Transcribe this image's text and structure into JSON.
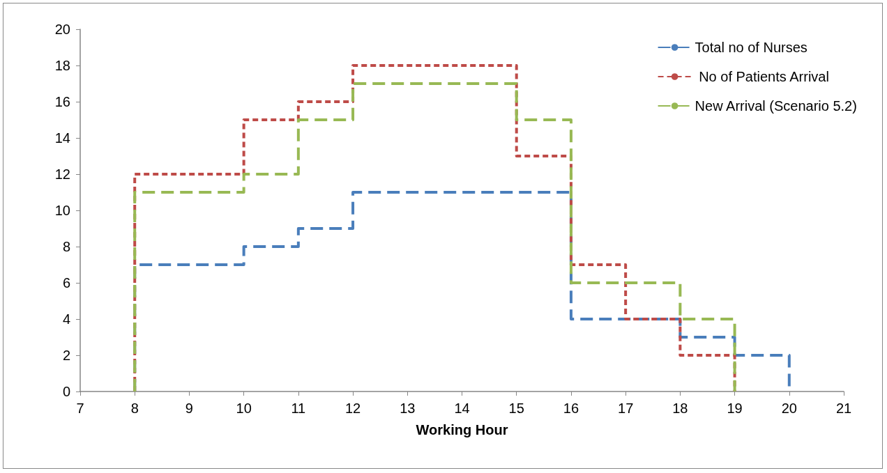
{
  "chart_data": {
    "type": "step",
    "xlabel": "Working Hour",
    "xlim": [
      7,
      21
    ],
    "xticks": [
      7,
      8,
      9,
      10,
      11,
      12,
      13,
      14,
      15,
      16,
      17,
      18,
      19,
      20,
      21
    ],
    "ylim": [
      0,
      20
    ],
    "yticks": [
      0,
      2,
      4,
      6,
      8,
      10,
      12,
      14,
      16,
      18,
      20
    ],
    "grid": false,
    "legend": "top right",
    "marker": "none",
    "series": [
      {
        "name": "Total no of Nurses",
        "color": "#4a7ebb",
        "line_style": "dashed",
        "x": [
          8,
          8,
          10,
          11,
          12,
          16,
          18,
          19,
          20
        ],
        "values": [
          0,
          7,
          8,
          9,
          11,
          4,
          3,
          2,
          0
        ]
      },
      {
        "name": " No of Patients Arrival",
        "color": "#be4b48",
        "line_style": "dotted",
        "x": [
          8,
          8,
          10,
          11,
          12,
          15,
          16,
          17,
          18,
          19
        ],
        "values": [
          0,
          12,
          15,
          16,
          18,
          13,
          7,
          4,
          2,
          0
        ]
      },
      {
        "name": "New Arrival (Scenario 5.2)",
        "color": "#98b954",
        "line_style": "dashed",
        "x": [
          8,
          8,
          10,
          11,
          12,
          15,
          16,
          18,
          19
        ],
        "values": [
          0,
          11,
          12,
          15,
          17,
          15,
          6,
          4,
          0
        ]
      }
    ]
  }
}
